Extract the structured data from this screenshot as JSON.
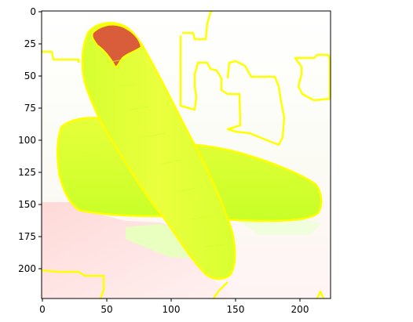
{
  "figure": {
    "image_content": "carrots-segmentation-overlay",
    "x_ticks": [
      "0",
      "50",
      "100",
      "150",
      "200"
    ],
    "y_ticks": [
      "0",
      "25",
      "50",
      "75",
      "100",
      "125",
      "150",
      "175",
      "200"
    ],
    "colors": {
      "background_tint": "#fbfbf4",
      "carrot_fill": "#e7ff3a",
      "carrot_shade": "#c9ff2a",
      "carrot_tip": "#d65a3a",
      "contour": "#ffff00",
      "shadow_tint": "#ffd7d7",
      "green_patch": "#e7ffb4"
    }
  }
}
